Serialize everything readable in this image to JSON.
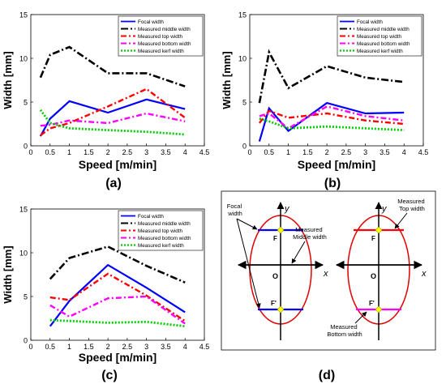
{
  "colors": {
    "focal": "#0000ff",
    "middle": "#000000",
    "top": "#ff0000",
    "bottom": "#ff00ff",
    "kerf": "#00cc00",
    "ellipse": "#ff0000",
    "point": "#ffff00"
  },
  "chart_data": [
    {
      "type": "line",
      "panel_label": "(a)",
      "xlabel": "Speed [m/min]",
      "ylabel": "Width [mm]",
      "xlim": [
        0,
        4.5
      ],
      "ylim": [
        0,
        15
      ],
      "xticks": [
        0,
        0.5,
        1,
        1.5,
        2,
        2.5,
        3,
        3.5,
        4,
        4.5
      ],
      "yticks": [
        0,
        5,
        10,
        15
      ],
      "grid": false,
      "legend_position": "top-right",
      "x": [
        0.25,
        0.5,
        1,
        2,
        3,
        4
      ],
      "series": [
        {
          "name": "Focal width",
          "values": [
            1.1,
            3.1,
            5.1,
            3.8,
            5.3,
            4.2
          ]
        },
        {
          "name": "Measured middle width",
          "values": [
            7.8,
            10.4,
            11.3,
            8.3,
            8.3,
            6.8
          ]
        },
        {
          "name": "Measured top width",
          "values": [
            1.2,
            2.0,
            2.6,
            4.5,
            6.5,
            3.2
          ]
        },
        {
          "name": "Measured bottom width",
          "values": [
            2.3,
            2.4,
            2.9,
            2.6,
            3.7,
            2.8
          ]
        },
        {
          "name": "Measured kerf width",
          "values": [
            4.1,
            2.6,
            2.0,
            1.8,
            1.6,
            1.3
          ]
        }
      ]
    },
    {
      "type": "line",
      "panel_label": "(b)",
      "xlabel": "Speed [m/min]",
      "ylabel": "Width [mm]",
      "xlim": [
        0,
        4.5
      ],
      "ylim": [
        0,
        15
      ],
      "xticks": [
        0,
        0.5,
        1,
        1.5,
        2,
        2.5,
        3,
        3.5,
        4,
        4.5
      ],
      "yticks": [
        0,
        5,
        10,
        15
      ],
      "grid": false,
      "legend_position": "top-right",
      "x": [
        0.25,
        0.5,
        1,
        2,
        3,
        4
      ],
      "series": [
        {
          "name": "Focal width",
          "values": [
            0.5,
            4.3,
            1.7,
            4.9,
            3.7,
            3.8
          ]
        },
        {
          "name": "Measured middle width",
          "values": [
            4.9,
            10.7,
            6.6,
            9.1,
            7.8,
            7.3
          ]
        },
        {
          "name": "Measured top width",
          "values": [
            2.6,
            4.0,
            3.2,
            3.7,
            2.9,
            2.5
          ]
        },
        {
          "name": "Measured bottom width",
          "values": [
            3.4,
            3.7,
            2.0,
            4.5,
            3.4,
            2.9
          ]
        },
        {
          "name": "Measured kerf width",
          "values": [
            3.1,
            2.8,
            2.0,
            2.2,
            2.0,
            1.8
          ]
        }
      ]
    },
    {
      "type": "line",
      "panel_label": "(c)",
      "xlabel": "Speed [m/min]",
      "ylabel": "Width [mm]",
      "xlim": [
        0,
        4.5
      ],
      "ylim": [
        0,
        15
      ],
      "xticks": [
        0,
        0.5,
        1,
        1.5,
        2,
        2.5,
        3,
        3.5,
        4,
        4.5
      ],
      "yticks": [
        0,
        5,
        10,
        15
      ],
      "grid": false,
      "legend_position": "top-right",
      "x": [
        0.5,
        1,
        2,
        3,
        4
      ],
      "series": [
        {
          "name": "Focal width",
          "values": [
            1.6,
            4.5,
            8.6,
            6.0,
            3.2
          ]
        },
        {
          "name": "Measured middle width",
          "values": [
            7.0,
            9.4,
            10.7,
            8.5,
            6.6
          ]
        },
        {
          "name": "Measured top width",
          "values": [
            4.9,
            4.6,
            7.6,
            5.1,
            2.2
          ]
        },
        {
          "name": "Measured bottom width",
          "values": [
            4.0,
            2.7,
            4.8,
            5.0,
            1.9
          ]
        },
        {
          "name": "Measured kerf width",
          "values": [
            2.3,
            2.2,
            2.0,
            2.1,
            1.6
          ]
        }
      ]
    }
  ],
  "diagram": {
    "panel_label": "(d)",
    "y_axis_label": "y",
    "x_axis_label": "x",
    "origin_label": "O",
    "focus_top_label": "F",
    "focus_bottom_label": "F'",
    "focal_width_label": [
      "Focal",
      "width"
    ],
    "middle_width_label": [
      "Measured",
      "Middle width"
    ],
    "top_width_label": [
      "Measured",
      "Top width"
    ],
    "bottom_width_label": [
      "Measured",
      "Bottom width"
    ]
  }
}
